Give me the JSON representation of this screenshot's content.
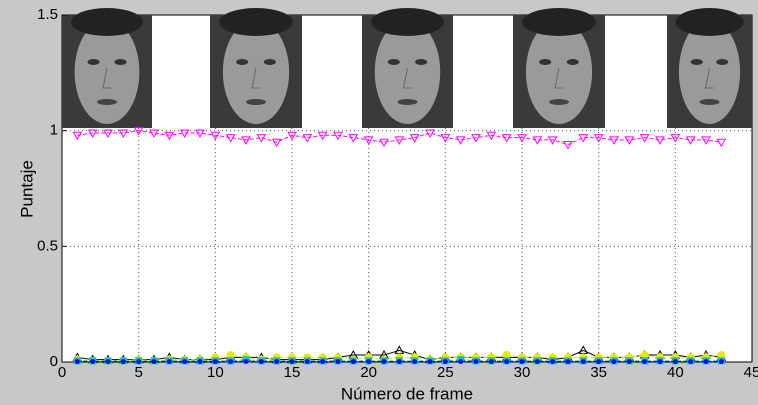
{
  "chart_data": {
    "type": "line",
    "xlabel": "Número de frame",
    "ylabel": "Puntaje",
    "x": [
      1,
      2,
      3,
      4,
      5,
      6,
      7,
      8,
      9,
      10,
      11,
      12,
      13,
      14,
      15,
      16,
      17,
      18,
      19,
      20,
      21,
      22,
      23,
      24,
      25,
      26,
      27,
      28,
      29,
      30,
      31,
      32,
      33,
      34,
      35,
      36,
      37,
      38,
      39,
      40,
      41,
      42,
      43
    ],
    "xlim": [
      0,
      45
    ],
    "xticks": [
      0,
      5,
      10,
      15,
      20,
      25,
      30,
      35,
      40,
      45
    ],
    "ylim": [
      0,
      1.5
    ],
    "yticks": [
      0,
      0.5,
      1,
      1.5
    ],
    "grid": true,
    "series": [
      {
        "color": "#ff00ff",
        "marker": "down-triangle",
        "dash": true,
        "values": [
          0.98,
          0.99,
          0.99,
          0.99,
          1.0,
          0.99,
          0.98,
          0.99,
          0.99,
          0.98,
          0.97,
          0.96,
          0.97,
          0.95,
          0.98,
          0.97,
          0.98,
          0.98,
          0.97,
          0.96,
          0.95,
          0.96,
          0.97,
          0.99,
          0.97,
          0.96,
          0.97,
          0.98,
          0.97,
          0.97,
          0.96,
          0.96,
          0.94,
          0.97,
          0.97,
          0.96,
          0.96,
          0.97,
          0.96,
          0.97,
          0.96,
          0.96,
          0.95
        ]
      },
      {
        "color": "#000000",
        "marker": "up-triangle",
        "dash": false,
        "values": [
          0.02,
          0.01,
          0.01,
          0.01,
          0.01,
          0.01,
          0.02,
          0.01,
          0.01,
          0.01,
          0.02,
          0.02,
          0.02,
          0.01,
          0.01,
          0.01,
          0.01,
          0.02,
          0.03,
          0.03,
          0.03,
          0.05,
          0.03,
          0.01,
          0.02,
          0.02,
          0.02,
          0.02,
          0.02,
          0.02,
          0.02,
          0.01,
          0.02,
          0.05,
          0.02,
          0.02,
          0.02,
          0.03,
          0.03,
          0.03,
          0.02,
          0.03,
          0.02
        ]
      },
      {
        "color": "#e8e800",
        "marker": "circle",
        "dash": true,
        "values": [
          0.01,
          0.005,
          0.005,
          0.005,
          0.01,
          0.005,
          0.01,
          0.01,
          0.01,
          0.02,
          0.03,
          0.02,
          0.01,
          0.02,
          0.02,
          0.02,
          0.02,
          0.02,
          0.01,
          0.02,
          0.01,
          0.02,
          0.02,
          0.01,
          0.02,
          0.02,
          0.02,
          0.02,
          0.03,
          0.02,
          0.02,
          0.02,
          0.02,
          0.02,
          0.02,
          0.02,
          0.02,
          0.03,
          0.02,
          0.02,
          0.02,
          0.02,
          0.03
        ]
      },
      {
        "color": "#00c8c8",
        "marker": "square",
        "dash": true,
        "values": [
          0.005,
          0.005,
          0.005,
          0.005,
          0.005,
          0.005,
          0.005,
          0.005,
          0.005,
          0.005,
          0.005,
          0.01,
          0.005,
          0.005,
          0.005,
          0.005,
          0.005,
          0.005,
          0.005,
          0.005,
          0.005,
          0.005,
          0.005,
          0.005,
          0.005,
          0.01,
          0.005,
          0.005,
          0.005,
          0.005,
          0.005,
          0.005,
          0.005,
          0.005,
          0.005,
          0.005,
          0.005,
          0.005,
          0.005,
          0.005,
          0.005,
          0.005,
          0.005
        ]
      },
      {
        "color": "#0000ff",
        "marker": "dot",
        "dash": true,
        "values": [
          0.002,
          0.002,
          0.002,
          0.002,
          0.002,
          0.002,
          0.002,
          0.002,
          0.002,
          0.002,
          0.002,
          0.002,
          0.002,
          0.002,
          0.002,
          0.002,
          0.002,
          0.002,
          0.002,
          0.002,
          0.002,
          0.002,
          0.002,
          0.002,
          0.002,
          0.002,
          0.002,
          0.002,
          0.002,
          0.002,
          0.002,
          0.002,
          0.002,
          0.002,
          0.002,
          0.002,
          0.002,
          0.002,
          0.002,
          0.002,
          0.002,
          0.002,
          0.002
        ]
      }
    ]
  }
}
